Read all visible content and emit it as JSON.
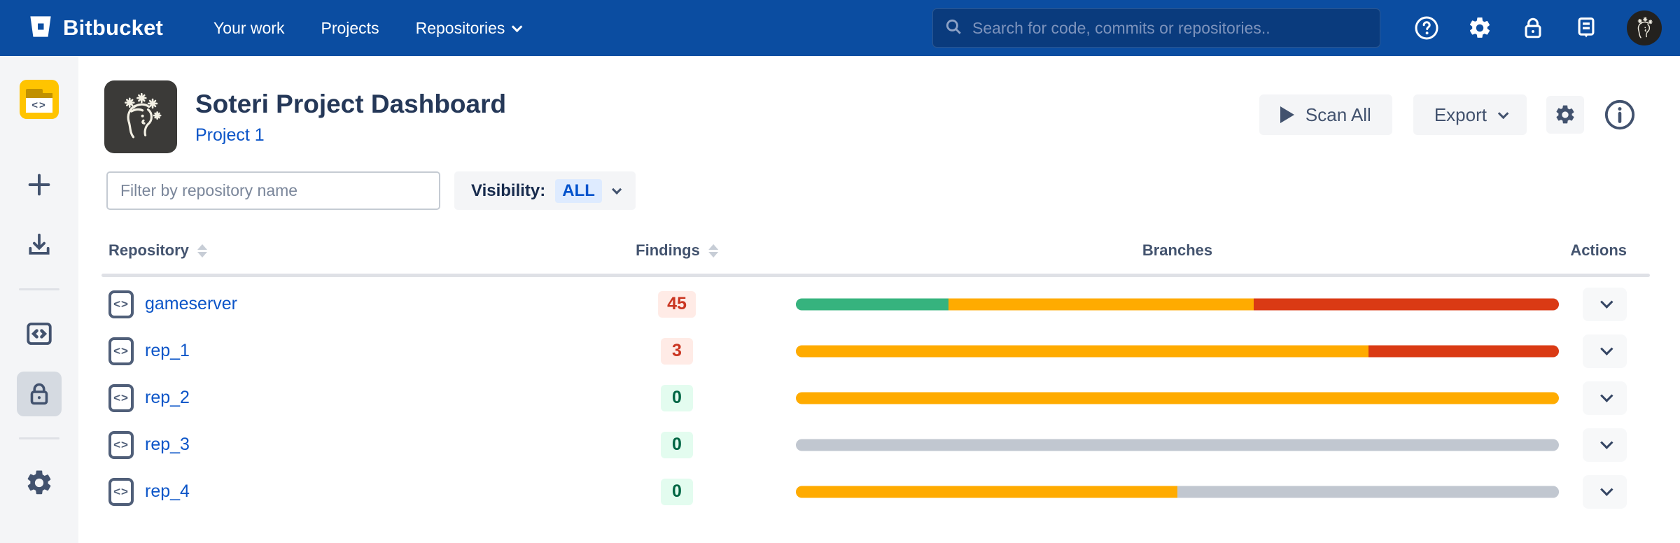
{
  "navbar": {
    "brand": "Bitbucket",
    "links": [
      {
        "label": "Your work"
      },
      {
        "label": "Projects"
      },
      {
        "label": "Repositories"
      }
    ],
    "search_placeholder": "Search for code, commits or repositories..",
    "icons": [
      "help-icon",
      "settings-icon",
      "lock-icon",
      "feedback-icon",
      "user-avatar"
    ]
  },
  "sidebar": {
    "items": [
      {
        "name": "project-avatar-folder",
        "selected": false
      },
      {
        "name": "create-plus",
        "selected": false
      },
      {
        "name": "clone-download",
        "selected": false
      },
      {
        "name": "source-code",
        "selected": false
      },
      {
        "name": "security-lock",
        "selected": true
      },
      {
        "name": "settings-gear",
        "selected": false
      }
    ]
  },
  "header": {
    "title": "Soteri Project Dashboard",
    "breadcrumb": "Project 1",
    "scan_all_label": "Scan All",
    "export_label": "Export"
  },
  "filters": {
    "repo_filter_placeholder": "Filter by repository name",
    "visibility_label": "Visibility:",
    "visibility_value": "ALL"
  },
  "table": {
    "columns": {
      "repository": "Repository",
      "findings": "Findings",
      "branches": "Branches",
      "actions": "Actions"
    },
    "rows": [
      {
        "name": "gameserver",
        "findings": "45",
        "findings_level": "danger",
        "branches": [
          {
            "color": "green",
            "pct": 20
          },
          {
            "color": "amber",
            "pct": 40
          },
          {
            "color": "red",
            "pct": 40
          }
        ]
      },
      {
        "name": "rep_1",
        "findings": "3",
        "findings_level": "danger",
        "branches": [
          {
            "color": "amber",
            "pct": 75
          },
          {
            "color": "red",
            "pct": 25
          }
        ]
      },
      {
        "name": "rep_2",
        "findings": "0",
        "findings_level": "ok",
        "branches": [
          {
            "color": "amber",
            "pct": 100
          }
        ]
      },
      {
        "name": "rep_3",
        "findings": "0",
        "findings_level": "ok",
        "branches": [
          {
            "color": "gray",
            "pct": 100
          }
        ]
      },
      {
        "name": "rep_4",
        "findings": "0",
        "findings_level": "ok",
        "branches": [
          {
            "color": "amber",
            "pct": 50
          },
          {
            "color": "gray",
            "pct": 50
          }
        ]
      }
    ]
  },
  "colors": {
    "navbar_bg": "#0B4DA1",
    "search_bg": "#0A3B7D",
    "link_blue": "#0C55C8",
    "slate_text": "#42526E",
    "bar_green": "#36B37E",
    "bar_amber": "#FFAB00",
    "bar_red": "#DA3A14",
    "bar_gray": "#C1C7D0",
    "badge_danger_bg": "#FFEBE6",
    "badge_danger_text": "#CA3521",
    "badge_ok_bg": "#E3FCEF",
    "badge_ok_text": "#006644",
    "project_tile_yellow": "#FFC400",
    "soteri_tile_dark": "#3B3A38"
  }
}
